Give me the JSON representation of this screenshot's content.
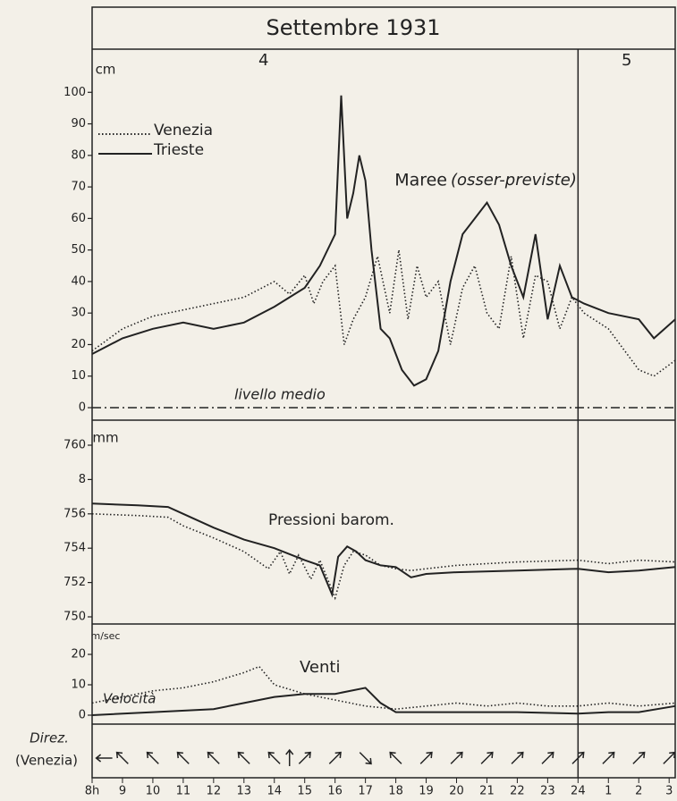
{
  "chart_data": [
    {
      "type": "line",
      "title": "Settembre 1931",
      "days": [
        "4",
        "5"
      ],
      "day_break": 24,
      "ylabel": "cm",
      "label": "Maree",
      "label_note": "(osser-previste)",
      "reference_label": "livello medio",
      "reference": 0,
      "xlim": [
        8,
        27.2
      ],
      "ylim": [
        0,
        110
      ],
      "yticks": [
        0,
        10,
        20,
        30,
        40,
        50,
        60,
        70,
        80,
        90,
        100
      ],
      "series": [
        {
          "name": "Venezia",
          "color": "#222",
          "dash": "dotted",
          "x": [
            8,
            9,
            10,
            11,
            12,
            13,
            14,
            14.5,
            15,
            15.3,
            15.6,
            16,
            16.3,
            16.6,
            17,
            17.4,
            17.8,
            18.1,
            18.4,
            18.7,
            19,
            19.4,
            19.8,
            20.2,
            20.6,
            21,
            21.4,
            21.8,
            22.2,
            22.6,
            23,
            23.4,
            23.8,
            24.2,
            25,
            26,
            26.5,
            27.2
          ],
          "values": [
            18,
            25,
            29,
            31,
            33,
            35,
            40,
            36,
            42,
            33,
            40,
            45,
            20,
            28,
            35,
            48,
            30,
            50,
            28,
            45,
            35,
            40,
            20,
            38,
            45,
            30,
            25,
            48,
            22,
            42,
            40,
            25,
            35,
            30,
            25,
            12,
            10,
            15
          ]
        },
        {
          "name": "Trieste",
          "color": "#222",
          "dash": "solid",
          "x": [
            8,
            9,
            10,
            11,
            12,
            13,
            14,
            15,
            15.5,
            16,
            16.2,
            16.4,
            16.6,
            16.8,
            17,
            17.2,
            17.5,
            17.8,
            18.2,
            18.6,
            19,
            19.4,
            19.8,
            20.2,
            20.6,
            21,
            21.4,
            21.8,
            22.2,
            22.6,
            23,
            23.4,
            23.8,
            24.2,
            25,
            26,
            26.5,
            27.2
          ],
          "values": [
            17,
            22,
            25,
            27,
            25,
            27,
            32,
            38,
            45,
            55,
            99,
            60,
            68,
            80,
            72,
            50,
            25,
            22,
            12,
            7,
            9,
            18,
            40,
            55,
            60,
            65,
            58,
            45,
            35,
            55,
            28,
            45,
            35,
            33,
            30,
            28,
            22,
            28
          ]
        }
      ]
    },
    {
      "type": "line",
      "ylabel": "mm",
      "label": "Pressioni barom.",
      "xlim": [
        8,
        27.2
      ],
      "ylim": [
        750,
        761
      ],
      "yticks": [
        {
          "value": 750,
          "label": "750"
        },
        752,
        754,
        756,
        {
          "value": 758,
          "label": "8"
        },
        760
      ],
      "series": [
        {
          "color": "#222",
          "dash": "dotted",
          "x": [
            8,
            9.5,
            10.5,
            11,
            12,
            13,
            13.8,
            14.2,
            14.5,
            14.8,
            15.2,
            15.5,
            15.8,
            16,
            16.3,
            16.6,
            17,
            17.5,
            18,
            18.5,
            19,
            20,
            22,
            24,
            25,
            26,
            27.2
          ],
          "values": [
            756,
            755.9,
            755.8,
            755.3,
            754.6,
            753.8,
            752.8,
            753.8,
            752.5,
            753.6,
            752.2,
            753.3,
            752,
            751.1,
            753,
            753.8,
            753.6,
            753,
            752.8,
            752.7,
            752.8,
            753,
            753.2,
            753.3,
            753.1,
            753.3,
            753.2
          ]
        },
        {
          "color": "#222",
          "dash": "solid",
          "x": [
            8,
            9.5,
            10.5,
            11,
            12,
            13,
            14,
            15,
            15.5,
            15.9,
            16.1,
            16.4,
            16.7,
            17,
            17.5,
            18,
            18.5,
            19,
            20,
            22,
            24,
            25,
            26,
            27.2
          ],
          "values": [
            756.6,
            756.5,
            756.4,
            756,
            755.2,
            754.5,
            754,
            753.3,
            753,
            751.3,
            753.5,
            754.1,
            753.8,
            753.3,
            753,
            752.9,
            752.3,
            752.5,
            752.6,
            752.7,
            752.8,
            752.6,
            752.7,
            752.9
          ]
        }
      ]
    },
    {
      "type": "line",
      "ylabel": "m/sec",
      "label": "Venti",
      "velocity_label": "Velocità",
      "direction_label": "Direz.",
      "direction_note": "(Venezia)",
      "xlim": [
        8,
        27.2
      ],
      "ylim": [
        0,
        28
      ],
      "yticks": [
        0,
        10,
        20
      ],
      "xticks": [
        {
          "value": 8,
          "label": "8h"
        },
        9,
        10,
        11,
        12,
        13,
        14,
        15,
        16,
        17,
        18,
        19,
        20,
        21,
        22,
        23,
        24,
        {
          "value": 25,
          "label": "1"
        },
        {
          "value": 26,
          "label": "2"
        },
        {
          "value": 27,
          "label": "3"
        }
      ],
      "series": [
        {
          "color": "#222",
          "dash": "dotted",
          "x": [
            8,
            9,
            10,
            11,
            12,
            13,
            13.5,
            14,
            15,
            16,
            17,
            18,
            19,
            20,
            21,
            22,
            23,
            24,
            25,
            26,
            27.2
          ],
          "values": [
            4,
            6,
            8,
            9,
            11,
            14,
            16,
            10,
            7,
            5,
            3,
            2,
            3,
            4,
            3,
            4,
            3,
            3,
            4,
            3,
            4
          ]
        },
        {
          "color": "#222",
          "dash": "solid",
          "x": [
            8,
            10,
            12,
            13,
            14,
            15,
            16,
            17,
            17.5,
            18,
            19,
            20,
            22,
            24,
            25,
            26,
            27.2
          ],
          "values": [
            0,
            1,
            2,
            4,
            6,
            7,
            7,
            9,
            4,
            1,
            1,
            1,
            1,
            0.5,
            1,
            1,
            3
          ]
        }
      ],
      "directions": {
        "x": [
          8.4,
          9,
          10,
          11,
          12,
          13,
          14,
          14.5,
          15,
          16,
          17,
          18,
          19,
          20,
          21,
          22,
          23,
          24,
          25,
          26,
          27
        ],
        "angles": [
          -90,
          -45,
          -45,
          -45,
          -45,
          -45,
          -45,
          0,
          45,
          45,
          135,
          -45,
          45,
          45,
          45,
          45,
          45,
          45,
          45,
          45,
          45
        ]
      }
    }
  ]
}
